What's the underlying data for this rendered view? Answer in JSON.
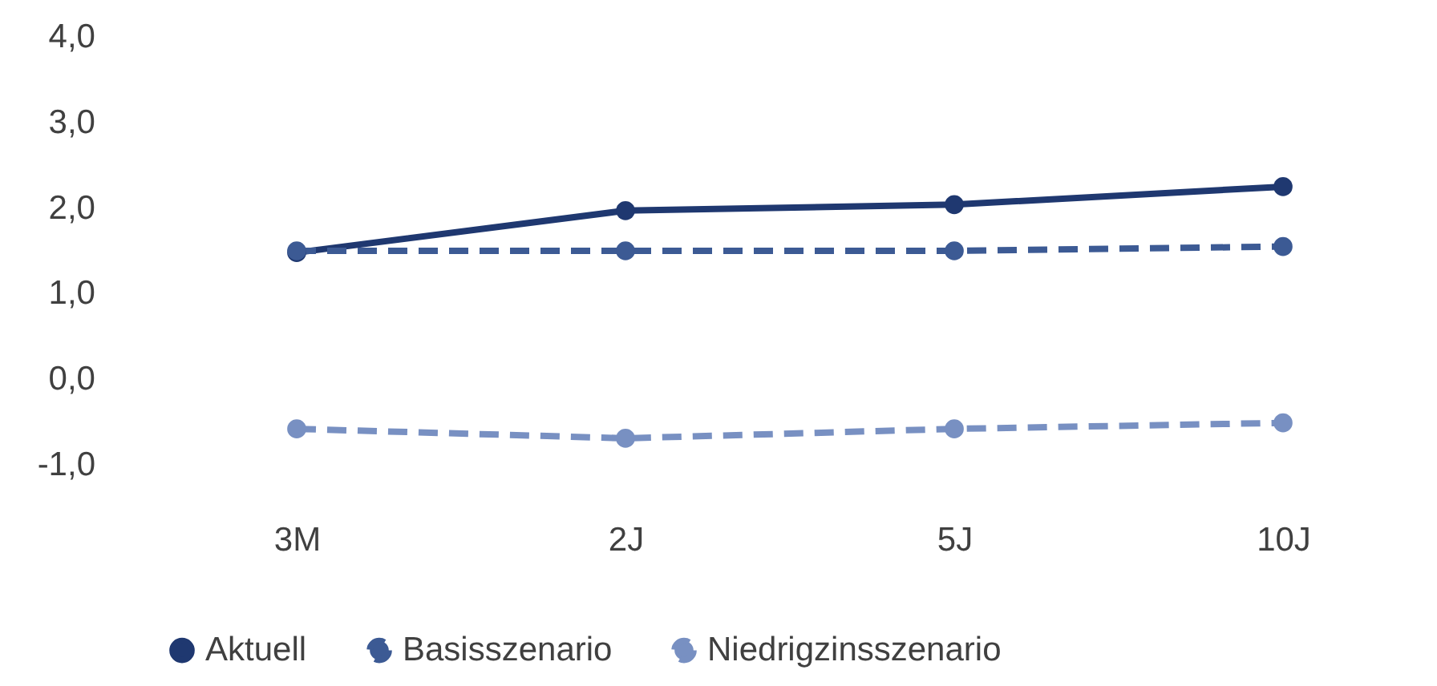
{
  "chart_data": {
    "type": "line",
    "categories": [
      "3M",
      "2J",
      "5J",
      "10J"
    ],
    "series": [
      {
        "name": "Aktuell",
        "color": "#1f3870",
        "line_style": "solid",
        "values": [
          1.48,
          1.97,
          2.04,
          2.25
        ]
      },
      {
        "name": "Basisszenario",
        "color": "#3c5a94",
        "line_style": "dashed",
        "values": [
          1.5,
          1.5,
          1.5,
          1.55
        ]
      },
      {
        "name": "Niedrigzinsszenario",
        "color": "#7890c2",
        "line_style": "dashed",
        "values": [
          -0.58,
          -0.69,
          -0.58,
          -0.51
        ]
      }
    ],
    "ylim": [
      -1.0,
      4.0
    ],
    "yticks": [
      {
        "value": -1,
        "label": "-1,0"
      },
      {
        "value": 0,
        "label": "0,0"
      },
      {
        "value": 1,
        "label": "1,0"
      },
      {
        "value": 2,
        "label": "2,0"
      },
      {
        "value": 3,
        "label": "3,0"
      },
      {
        "value": 4,
        "label": "4,0"
      }
    ],
    "grid": false,
    "legend": "bottom",
    "marker": "circle"
  }
}
